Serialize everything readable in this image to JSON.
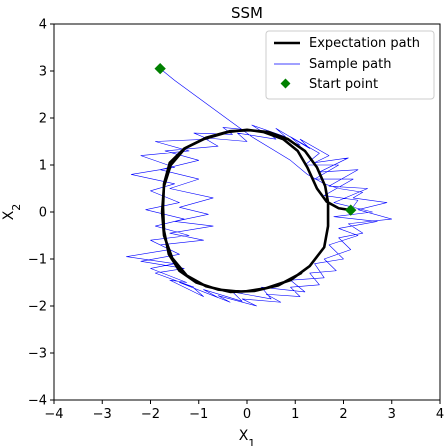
{
  "chart_data": {
    "type": "line",
    "title": "SSM",
    "xlabel_main": "X",
    "xlabel_sub": "1",
    "ylabel_main": "X",
    "ylabel_sub": "2",
    "xlim": [
      -4,
      4
    ],
    "ylim": [
      -4,
      4
    ],
    "xticks": [
      -4,
      -3,
      -2,
      -1,
      0,
      1,
      2,
      3,
      4
    ],
    "yticks": [
      -4,
      -3,
      -2,
      -1,
      0,
      1,
      2,
      3,
      4
    ],
    "xtick_labels": [
      "−4",
      "−3",
      "−2",
      "−1",
      "0",
      "1",
      "2",
      "3",
      "4"
    ],
    "ytick_labels": [
      "−4",
      "−3",
      "−2",
      "−1",
      "0",
      "1",
      "2",
      "3",
      "4"
    ],
    "grid": false,
    "legend_position": "top-right",
    "colors": {
      "expectation": "#000000",
      "sample": "#0000ff",
      "start": "#008000"
    },
    "series": [
      {
        "name": "Expectation path",
        "style": "thick-line",
        "points": [
          [
            2.15,
            0.04
          ],
          [
            1.9,
            0.08
          ],
          [
            1.65,
            0.22
          ],
          [
            1.45,
            0.5
          ],
          [
            1.25,
            0.95
          ],
          [
            1.05,
            1.3
          ],
          [
            0.75,
            1.55
          ],
          [
            0.35,
            1.7
          ],
          [
            0.0,
            1.75
          ],
          [
            -0.4,
            1.7
          ],
          [
            -0.9,
            1.55
          ],
          [
            -1.3,
            1.35
          ],
          [
            -1.6,
            1.05
          ],
          [
            -1.72,
            0.6
          ],
          [
            -1.74,
            0.1
          ],
          [
            -1.72,
            -0.4
          ],
          [
            -1.62,
            -0.9
          ],
          [
            -1.4,
            -1.25
          ],
          [
            -1.05,
            -1.5
          ],
          [
            -0.6,
            -1.65
          ],
          [
            -0.1,
            -1.7
          ],
          [
            0.4,
            -1.62
          ],
          [
            0.9,
            -1.45
          ],
          [
            1.3,
            -1.15
          ],
          [
            1.6,
            -0.75
          ],
          [
            1.68,
            -0.3
          ],
          [
            1.68,
            0.2
          ],
          [
            1.62,
            0.55
          ],
          [
            1.45,
            0.95
          ],
          [
            1.2,
            1.3
          ],
          [
            0.85,
            1.55
          ],
          [
            0.45,
            1.7
          ],
          [
            0.05,
            1.74
          ],
          [
            -0.35,
            1.72
          ],
          [
            -0.85,
            1.58
          ],
          [
            -1.28,
            1.36
          ],
          [
            -1.58,
            1.0
          ],
          [
            -1.72,
            0.55
          ],
          [
            -1.76,
            0.0
          ],
          [
            -1.72,
            -0.5
          ],
          [
            -1.55,
            -0.98
          ],
          [
            -1.25,
            -1.35
          ],
          [
            -0.85,
            -1.58
          ],
          [
            -0.35,
            -1.7
          ],
          [
            0.15,
            -1.68
          ],
          [
            0.65,
            -1.56
          ],
          [
            1.12,
            -1.3
          ]
        ]
      },
      {
        "name": "Sample path",
        "style": "thin-line",
        "points": [
          [
            -1.8,
            3.05
          ],
          [
            -1.5,
            2.8
          ],
          [
            -1.1,
            2.5
          ],
          [
            -0.7,
            2.2
          ],
          [
            -0.3,
            1.9
          ],
          [
            0.1,
            1.6
          ],
          [
            0.5,
            1.35
          ],
          [
            0.9,
            1.1
          ],
          [
            1.25,
            0.8
          ],
          [
            1.6,
            0.6
          ],
          [
            1.9,
            0.5
          ],
          [
            2.4,
            0.42
          ],
          [
            2.2,
            0.3
          ],
          [
            2.9,
            0.2
          ],
          [
            2.3,
            0.05
          ],
          [
            3.0,
            -0.15
          ],
          [
            2.1,
            -0.25
          ],
          [
            2.4,
            -0.45
          ],
          [
            1.9,
            -0.55
          ],
          [
            2.15,
            -0.8
          ],
          [
            1.6,
            -1.0
          ],
          [
            1.85,
            -1.25
          ],
          [
            1.3,
            -1.3
          ],
          [
            1.5,
            -1.55
          ],
          [
            0.9,
            -1.6
          ],
          [
            1.1,
            -1.8
          ],
          [
            0.4,
            -1.75
          ],
          [
            0.7,
            -1.92
          ],
          [
            -0.1,
            -1.85
          ],
          [
            0.2,
            -2.0
          ],
          [
            -0.6,
            -1.78
          ],
          [
            -0.35,
            -1.92
          ],
          [
            -1.1,
            -1.62
          ],
          [
            -0.9,
            -1.8
          ],
          [
            -1.6,
            -1.45
          ],
          [
            -1.25,
            -1.5
          ],
          [
            -2.0,
            -1.2
          ],
          [
            -1.5,
            -1.1
          ],
          [
            -2.5,
            -0.95
          ],
          [
            -1.6,
            -0.8
          ],
          [
            -2.0,
            -0.6
          ],
          [
            -1.2,
            -0.5
          ],
          [
            -1.9,
            -0.3
          ],
          [
            -1.3,
            -0.15
          ],
          [
            -2.1,
            0.05
          ],
          [
            -1.4,
            0.2
          ],
          [
            -2.0,
            0.45
          ],
          [
            -1.5,
            0.6
          ],
          [
            -2.4,
            0.8
          ],
          [
            -1.5,
            0.95
          ],
          [
            -2.2,
            1.2
          ],
          [
            -1.2,
            1.3
          ],
          [
            -1.9,
            1.5
          ],
          [
            -0.8,
            1.55
          ],
          [
            -1.1,
            1.68
          ],
          [
            -0.3,
            1.65
          ],
          [
            -0.5,
            1.8
          ],
          [
            0.3,
            1.72
          ],
          [
            0.1,
            1.85
          ],
          [
            0.8,
            1.6
          ],
          [
            0.6,
            1.78
          ],
          [
            1.3,
            1.35
          ],
          [
            1.1,
            1.55
          ],
          [
            1.7,
            1.2
          ],
          [
            1.4,
            1.05
          ],
          [
            2.1,
            1.15
          ],
          [
            1.5,
            0.85
          ],
          [
            2.3,
            0.9
          ],
          [
            1.7,
            0.55
          ],
          [
            2.5,
            0.5
          ],
          [
            1.8,
            0.2
          ],
          [
            2.6,
            0.0
          ],
          [
            1.8,
            -0.1
          ],
          [
            2.7,
            -0.2
          ],
          [
            1.9,
            -0.35
          ],
          [
            2.3,
            -0.5
          ],
          [
            1.7,
            -0.7
          ],
          [
            2.0,
            -1.0
          ],
          [
            1.4,
            -1.1
          ],
          [
            1.6,
            -1.4
          ],
          [
            0.9,
            -1.45
          ],
          [
            1.2,
            -1.7
          ],
          [
            0.3,
            -1.6
          ],
          [
            0.5,
            -1.85
          ],
          [
            -0.3,
            -1.7
          ],
          [
            -0.1,
            -1.9
          ],
          [
            -0.9,
            -1.65
          ],
          [
            -0.6,
            -1.82
          ],
          [
            -1.4,
            -1.5
          ],
          [
            -1.1,
            -1.6
          ],
          [
            -1.9,
            -1.3
          ],
          [
            -1.3,
            -1.2
          ],
          [
            -2.2,
            -1.05
          ],
          [
            -1.4,
            -0.9
          ],
          [
            -1.8,
            -0.7
          ],
          [
            -0.9,
            -0.6
          ],
          [
            -1.6,
            -0.45
          ],
          [
            -0.7,
            -0.3
          ],
          [
            -1.5,
            -0.2
          ],
          [
            -0.8,
            -0.05
          ],
          [
            -1.4,
            0.1
          ],
          [
            -0.7,
            0.3
          ],
          [
            -1.6,
            0.5
          ],
          [
            -1.0,
            0.7
          ],
          [
            -1.8,
            0.9
          ],
          [
            -1.0,
            1.1
          ],
          [
            -1.7,
            1.3
          ],
          [
            -0.6,
            1.4
          ],
          [
            -0.9,
            1.58
          ],
          [
            0.0,
            1.5
          ],
          [
            -0.2,
            1.68
          ],
          [
            0.6,
            1.55
          ],
          [
            0.4,
            1.72
          ],
          [
            1.1,
            1.42
          ],
          [
            0.9,
            1.6
          ],
          [
            1.5,
            1.25
          ],
          [
            1.2,
            1.0
          ],
          [
            1.9,
            1.0
          ],
          [
            1.4,
            0.7
          ],
          [
            2.2,
            0.7
          ],
          [
            1.6,
            0.35
          ],
          [
            2.3,
            0.25
          ],
          [
            2.15,
            0.04
          ]
        ]
      },
      {
        "name": "Start point",
        "style": "diamond-marker",
        "points": [
          [
            -1.8,
            3.05
          ],
          [
            2.15,
            0.04
          ]
        ]
      }
    ]
  }
}
